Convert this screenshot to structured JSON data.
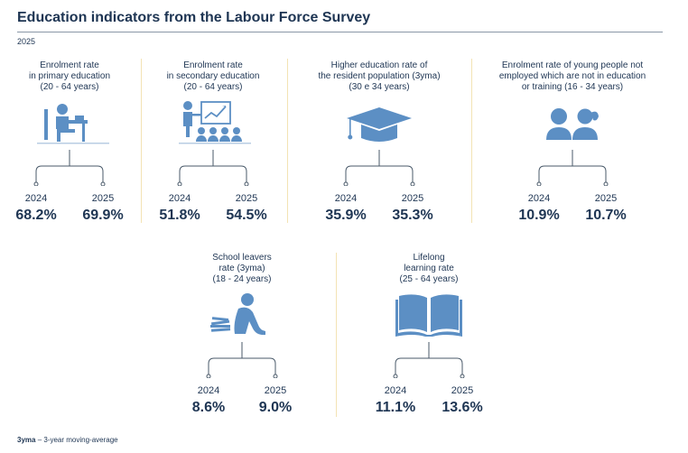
{
  "header": {
    "title": "Education indicators from the Labour Force Survey",
    "year": "2025"
  },
  "colors": {
    "icon": "#5c8fc4",
    "text": "#1e3553",
    "divider": "#f3e3b4",
    "bracket": "#4a5a6a"
  },
  "indicators": [
    {
      "label_lines": [
        "Enrolment rate",
        "in primary education",
        "(20 - 64 years)"
      ],
      "icon": "student-at-desk-icon",
      "year_a": "2024",
      "year_b": "2025",
      "value_a": "68.2%",
      "value_b": "69.9%"
    },
    {
      "label_lines": [
        "Enrolment rate",
        "in secondary education",
        "(20 - 64 years)"
      ],
      "icon": "classroom-presentation-icon",
      "year_a": "2024",
      "year_b": "2025",
      "value_a": "51.8%",
      "value_b": "54.5%"
    },
    {
      "label_lines": [
        "Higher education rate of",
        "the resident population (3yma)",
        "(30 e 34 years)"
      ],
      "icon": "graduation-cap-icon",
      "year_a": "2024",
      "year_b": "2025",
      "value_a": "35.9%",
      "value_b": "35.3%"
    },
    {
      "label_lines": [
        "Enrolment rate of young people not",
        "employed which are not in education",
        "or training (16 - 34 years)"
      ],
      "icon": "young-people-icon",
      "year_a": "2024",
      "year_b": "2025",
      "value_a": "10.9%",
      "value_b": "10.7%"
    },
    {
      "label_lines": [
        "School leavers",
        "rate (3yma)",
        "(18 - 24 years)"
      ],
      "icon": "school-leaver-icon",
      "year_a": "2024",
      "year_b": "2025",
      "value_a": "8.6%",
      "value_b": "9.0%"
    },
    {
      "label_lines": [
        "Lifelong",
        "learning rate",
        "(25 - 64 years)"
      ],
      "icon": "open-book-icon",
      "year_a": "2024",
      "year_b": "2025",
      "value_a": "11.1%",
      "value_b": "13.6%"
    }
  ],
  "footnote": {
    "term": "3yma",
    "definition": " – 3-year moving-average"
  }
}
